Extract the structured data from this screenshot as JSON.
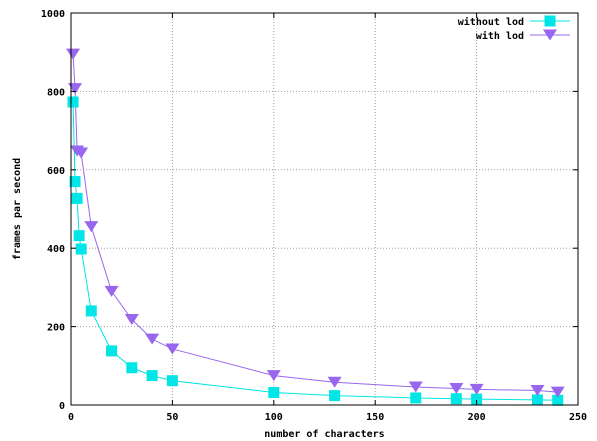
{
  "chart_data": {
    "type": "line",
    "xlabel": "number of characters",
    "ylabel": "frames par second",
    "xlim": [
      0,
      250
    ],
    "ylim": [
      0,
      1000
    ],
    "xticks": [
      "0",
      "50",
      "100",
      "150",
      "200",
      "250"
    ],
    "yticks": [
      "0",
      "200",
      "400",
      "600",
      "800",
      "1000"
    ],
    "grid": true,
    "legend_position": "top-right",
    "series": [
      {
        "name": "without lod",
        "color": "#00e5e5",
        "marker": "square",
        "x": [
          1,
          2,
          3,
          4,
          5,
          10,
          20,
          30,
          40,
          50,
          100,
          130,
          170,
          190,
          200,
          230,
          240
        ],
        "y": [
          773,
          570,
          527,
          432,
          398,
          240,
          138,
          95,
          75,
          62,
          32,
          24,
          18,
          16,
          15,
          13,
          12
        ]
      },
      {
        "name": "with lod",
        "color": "#9966ee",
        "marker": "triangle-down",
        "x": [
          1,
          2,
          3,
          5,
          10,
          20,
          30,
          40,
          50,
          100,
          130,
          170,
          190,
          200,
          230,
          240
        ],
        "y": [
          895,
          807,
          648,
          643,
          455,
          290,
          218,
          168,
          143,
          75,
          58,
          46,
          42,
          40,
          37,
          33
        ]
      }
    ]
  }
}
